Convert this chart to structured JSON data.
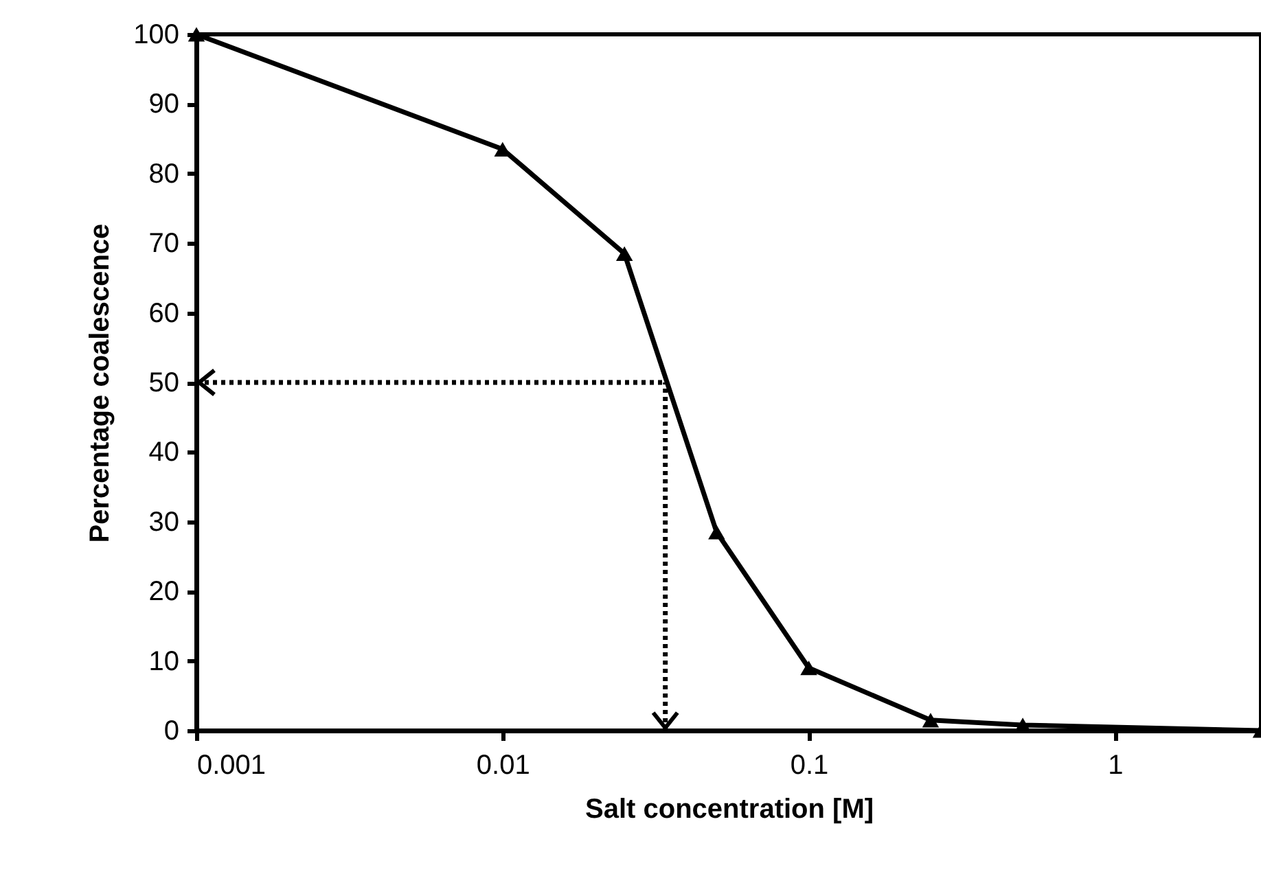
{
  "chart_data": {
    "type": "line",
    "xlabel": "Salt concentration [M]",
    "ylabel": "Percentage coalescence",
    "log": "x",
    "xlim": [
      0.001,
      3
    ],
    "xticks": [
      0.001,
      0.01,
      0.1,
      1
    ],
    "ylim": [
      0,
      100
    ],
    "yticks": [
      0,
      10,
      20,
      30,
      40,
      50,
      60,
      70,
      80,
      90,
      100
    ],
    "marker": "triangle",
    "line_style": "solid",
    "series": [
      {
        "color": "#000000",
        "x": [
          0.001,
          0.01,
          0.025,
          0.05,
          0.1,
          0.25,
          0.5,
          3
        ],
        "values": [
          100,
          83.5,
          68.5,
          28.5,
          9,
          1.5,
          0.8,
          0
        ]
      }
    ],
    "ref_lines": [
      {
        "axis": "y",
        "value": 50,
        "color": "#000000",
        "line_style": "dotted"
      },
      {
        "axis": "x",
        "value": 0.034,
        "color": "#000000",
        "line_style": "dotted"
      }
    ]
  }
}
